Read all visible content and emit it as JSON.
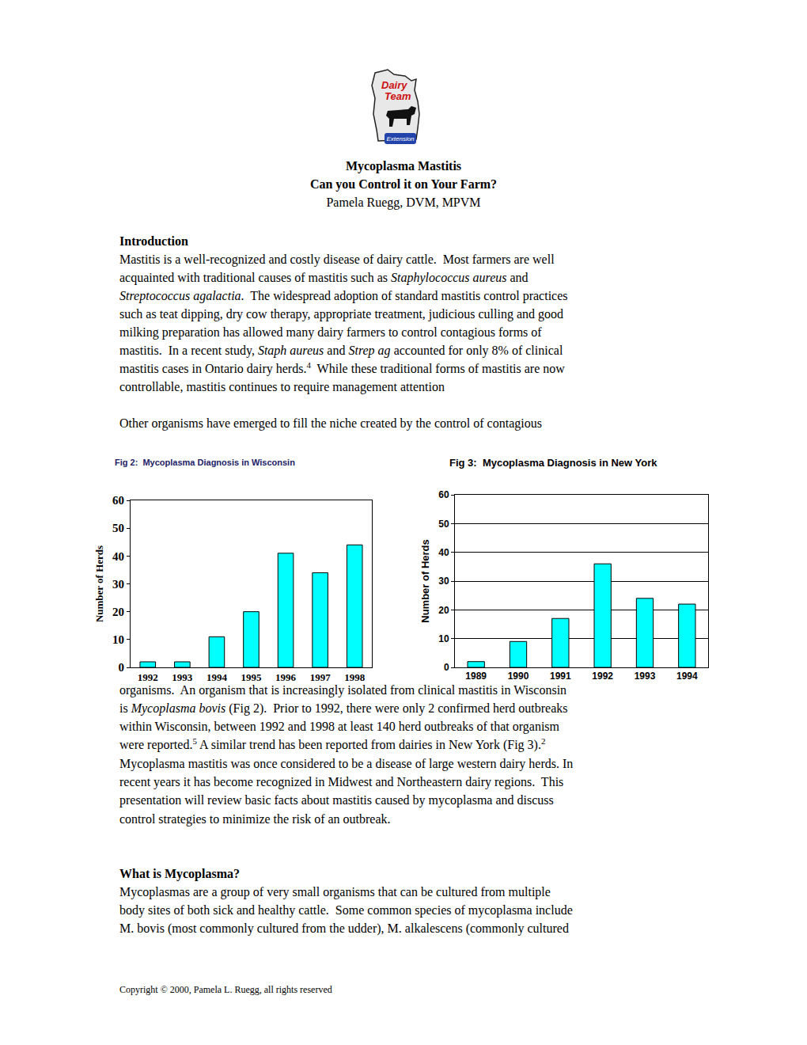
{
  "document": {
    "logo": {
      "lines": [
        "Dairy",
        "Team"
      ],
      "badge": "Extension"
    },
    "title": "Mycoplasma Mastitis",
    "subtitle": "Can you Control it on Your Farm?",
    "author": "Pamela Ruegg, DVM, MPVM",
    "introduction": {
      "heading": "Introduction",
      "lines": [
        [
          "Mastitis is a well-recognized and costly disease of dairy cattle.  Most farmers are well"
        ],
        [
          "acquainted with traditional causes of mastitis such as ",
          {
            "i": "Staphylococcus aureus"
          },
          " and"
        ],
        [
          {
            "i": "Streptococcus agalactia"
          },
          ".  The widespread adoption of standard mastitis control practices"
        ],
        [
          "such as teat dipping, dry cow therapy, appropriate treatment, judicious culling and good"
        ],
        [
          "milking preparation has allowed many dairy farmers to control contagious forms of"
        ],
        [
          "mastitis.  In a recent study, ",
          {
            "i": "Staph aureus"
          },
          " and ",
          {
            "i": "Strep ag"
          },
          " accounted for only 8% of clinical"
        ],
        [
          "mastitis cases in Ontario dairy herds.",
          {
            "sup": "4"
          },
          "  While these traditional forms of mastitis are now"
        ],
        [
          "controllable, mastitis continues to require management attention"
        ]
      ],
      "next_paragraph_start": "Other organisms have emerged to fill the niche created by the control of contagious"
    },
    "after_figures": {
      "lines": [
        [
          "organisms.  An organism that is increasingly isolated from clinical mastitis in Wisconsin"
        ],
        [
          "is ",
          {
            "i": "Mycoplasma bovis"
          },
          " (Fig 2).  Prior to 1992, there were only 2 confirmed herd outbreaks"
        ],
        [
          "within Wisconsin, between 1992 and 1998 at least 140 herd outbreaks of that organism"
        ],
        [
          "were reported.",
          {
            "sup": "5"
          },
          " A similar trend has been reported from dairies in New York (Fig 3).",
          {
            "sup": "2"
          }
        ],
        [
          "Mycoplasma mastitis was once considered to be a disease of large western dairy herds. In"
        ],
        [
          "recent years it has become recognized in Midwest and Northeastern dairy regions.  This"
        ],
        [
          "presentation will review basic facts about mastitis caused by mycoplasma and discuss"
        ],
        [
          "control strategies to minimize the risk of an outbreak."
        ]
      ]
    },
    "what_is": {
      "heading": "What is Mycoplasma?",
      "lines": [
        [
          "Mycoplasmas are a group of very small organisms that can be cultured from multiple"
        ],
        [
          "body sites of both sick and healthy cattle.  Some common species of mycoplasma include"
        ],
        [
          "M. bovis (most commonly cultured from the udder), M. alkalescens (commonly cultured"
        ]
      ]
    },
    "footer": "Copyright © 2000, Pamela L. Ruegg, all rights reserved"
  },
  "chart_data": [
    {
      "type": "bar",
      "title": "Fig 2:  Mycoplasma Diagnosis in Wisconsin",
      "y_label": "Number of Herds",
      "categories": [
        "1992",
        "1993",
        "1994",
        "1995",
        "1996",
        "1997",
        "1998"
      ],
      "values": [
        2,
        2,
        11,
        20,
        41,
        34,
        44
      ],
      "color": "#00ffff",
      "ylim": [
        0,
        60
      ],
      "yticks": [
        0,
        10,
        20,
        30,
        40,
        50,
        60
      ],
      "grid": false
    },
    {
      "type": "bar",
      "title": "Fig 3:  Mycoplasma Diagnosis in New York",
      "y_label": "Number of Herds",
      "categories": [
        "1989",
        "1990",
        "1991",
        "1992",
        "1993",
        "1994"
      ],
      "values": [
        2,
        9,
        17,
        36,
        24,
        22
      ],
      "color": "#00ffff",
      "ylim": [
        0,
        60
      ],
      "yticks": [
        0,
        10,
        20,
        30,
        40,
        50,
        60
      ],
      "grid": true
    }
  ]
}
